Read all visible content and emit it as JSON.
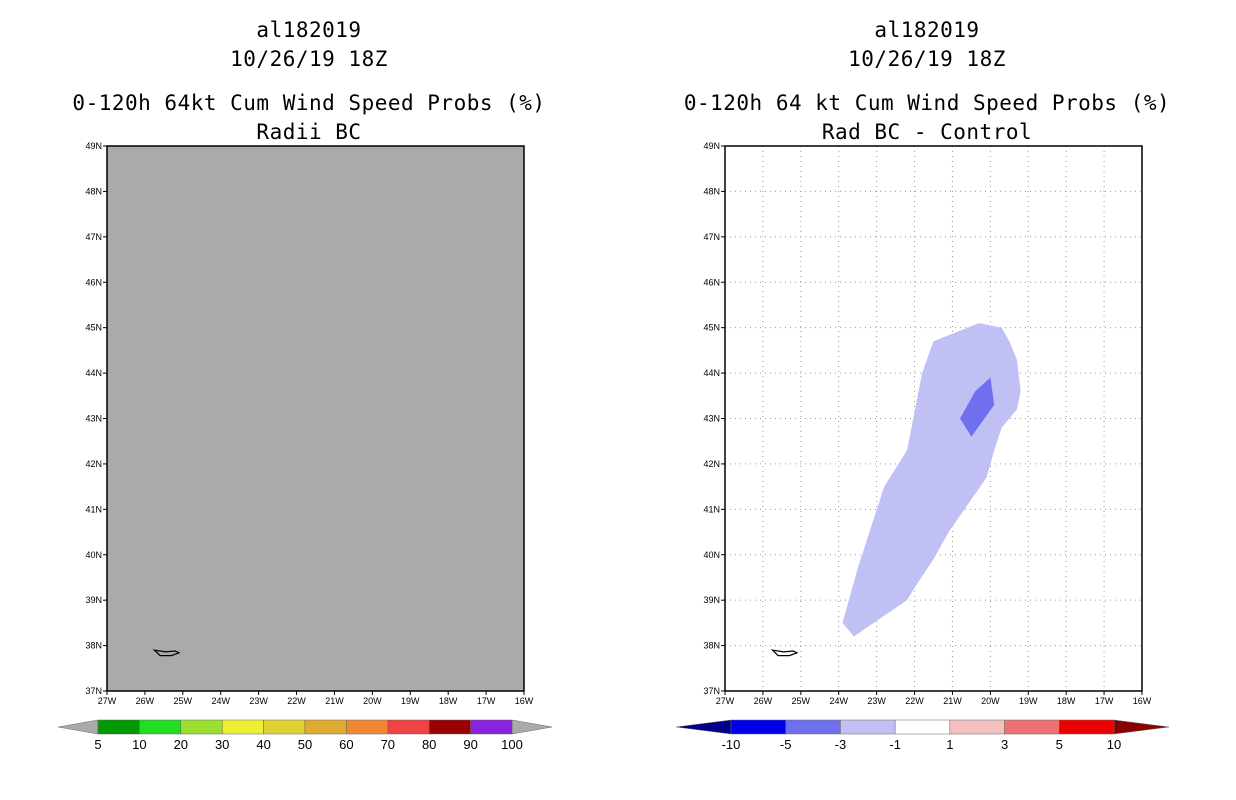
{
  "chart_data": [
    {
      "type": "map",
      "title_lines": [
        "al182019",
        "10/26/19 18Z",
        "0-120h 64kt Cum Wind Speed Probs (%)",
        "Radii BC"
      ],
      "x_ticks": [
        "27W",
        "26W",
        "25W",
        "24W",
        "23W",
        "22W",
        "21W",
        "20W",
        "19W",
        "18W",
        "17W",
        "16W"
      ],
      "y_ticks": [
        "37N",
        "38N",
        "39N",
        "40N",
        "41N",
        "42N",
        "43N",
        "44N",
        "45N",
        "46N",
        "47N",
        "48N",
        "49N"
      ],
      "lon_range": [
        -27,
        -16
      ],
      "lat_range": [
        37,
        49
      ],
      "gridlines": false,
      "background_color": "#aaaaaa",
      "island_outline": [
        [
          -25.75,
          37.9
        ],
        [
          -25.6,
          37.78
        ],
        [
          -25.3,
          37.78
        ],
        [
          -25.1,
          37.84
        ],
        [
          -25.2,
          37.88
        ],
        [
          -25.45,
          37.86
        ]
      ],
      "colorbar": {
        "labels": [
          "5",
          "10",
          "20",
          "30",
          "40",
          "50",
          "60",
          "70",
          "80",
          "90",
          "100"
        ],
        "colors": [
          "#009900",
          "#22dd22",
          "#99e033",
          "#eeee33",
          "#e0d033",
          "#e0aa33",
          "#ee8833",
          "#ee4444",
          "#990000",
          "#8822dd"
        ],
        "extend_colors": [
          "#aaaaaa",
          "#aaaaaa"
        ]
      }
    },
    {
      "type": "map",
      "title_lines": [
        "al182019",
        "10/26/19 18Z",
        "0-120h 64 kt Cum Wind Speed Probs (%)",
        "Rad BC - Control"
      ],
      "x_ticks": [
        "27W",
        "26W",
        "25W",
        "24W",
        "23W",
        "22W",
        "21W",
        "20W",
        "19W",
        "18W",
        "17W",
        "16W"
      ],
      "y_ticks": [
        "37N",
        "38N",
        "39N",
        "40N",
        "41N",
        "42N",
        "43N",
        "44N",
        "45N",
        "46N",
        "47N",
        "48N",
        "49N"
      ],
      "lon_range": [
        -27,
        -16
      ],
      "lat_range": [
        37,
        49
      ],
      "gridlines": true,
      "background_color": "#ffffff",
      "island_outline": [
        [
          -25.75,
          37.9
        ],
        [
          -25.6,
          37.78
        ],
        [
          -25.3,
          37.78
        ],
        [
          -25.1,
          37.84
        ],
        [
          -25.2,
          37.88
        ],
        [
          -25.45,
          37.86
        ]
      ],
      "contours": [
        {
          "level": "-3 to -1",
          "color": "#c0c0f5",
          "polygon": [
            [
              -23.9,
              38.5
            ],
            [
              -23.6,
              38.2
            ],
            [
              -22.9,
              38.6
            ],
            [
              -22.2,
              39.0
            ],
            [
              -21.9,
              39.4
            ],
            [
              -21.5,
              39.9
            ],
            [
              -21.1,
              40.5
            ],
            [
              -20.6,
              41.1
            ],
            [
              -20.1,
              41.7
            ],
            [
              -19.9,
              42.3
            ],
            [
              -19.7,
              42.8
            ],
            [
              -19.3,
              43.2
            ],
            [
              -19.2,
              43.6
            ],
            [
              -19.3,
              44.3
            ],
            [
              -19.5,
              44.7
            ],
            [
              -19.7,
              45.0
            ],
            [
              -20.3,
              45.1
            ],
            [
              -20.9,
              44.9
            ],
            [
              -21.5,
              44.7
            ],
            [
              -21.8,
              44.0
            ],
            [
              -22.2,
              42.3
            ],
            [
              -22.8,
              41.5
            ],
            [
              -23.5,
              39.7
            ],
            [
              -23.9,
              38.5
            ]
          ]
        },
        {
          "level": "-5 to -3",
          "color": "#7070ee",
          "polygon": [
            [
              -20.0,
              43.9
            ],
            [
              -20.4,
              43.6
            ],
            [
              -20.8,
              43.0
            ],
            [
              -20.5,
              42.6
            ],
            [
              -19.9,
              43.3
            ],
            [
              -20.0,
              43.9
            ]
          ]
        }
      ],
      "colorbar": {
        "labels": [
          "-10",
          "-5",
          "-3",
          "-1",
          "1",
          "3",
          "5",
          "10"
        ],
        "colors": [
          "#0000ee",
          "#7070ee",
          "#c0c0f5",
          "#ffffff",
          "#f5c0c0",
          "#ee7070",
          "#ee0000"
        ],
        "extend_colors": [
          "#000088",
          "#880000"
        ]
      }
    }
  ]
}
